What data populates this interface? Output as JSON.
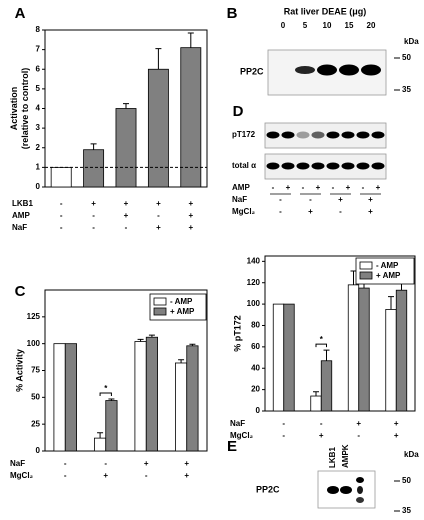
{
  "chart_data": [
    {
      "type": "bar",
      "panel_label": "A",
      "ylabel": [
        "Activation",
        "(relative to control)"
      ],
      "values": [
        1,
        1.9,
        4.0,
        6.0,
        7.1
      ],
      "errors": [
        null,
        0.3,
        0.25,
        1.05,
        0.75
      ],
      "colors": [
        "#ffffff",
        "#808080",
        "#808080",
        "#808080",
        "#808080"
      ],
      "ylim": [
        0,
        8
      ],
      "yticks": [
        0,
        1,
        2,
        3,
        4,
        5,
        6,
        7,
        8
      ],
      "reference_line": 1,
      "conditions": [
        {
          "name": "LKB1",
          "signs": [
            "-",
            "+",
            "+",
            "+",
            "+"
          ]
        },
        {
          "name": "AMP",
          "signs": [
            "-",
            "-",
            "+",
            "-",
            "+"
          ]
        },
        {
          "name": "NaF",
          "signs": [
            "-",
            "-",
            "-",
            "+",
            "+"
          ]
        }
      ]
    },
    {
      "type": "grouped_bar",
      "panel_label": "C",
      "ylabel": [
        "% Activity"
      ],
      "series": [
        {
          "name": "- AMP",
          "color": "#ffffff",
          "values": [
            100,
            12,
            102,
            82
          ],
          "errors": [
            null,
            5,
            2,
            3
          ]
        },
        {
          "name": "+ AMP",
          "color": "#808080",
          "values": [
            100,
            47,
            106,
            98
          ],
          "errors": [
            null,
            1.5,
            2,
            1.5
          ]
        }
      ],
      "ylim": [
        0,
        150
      ],
      "yticks": [
        0,
        25,
        50,
        75,
        100,
        125
      ],
      "annotation": "*",
      "conditions": [
        {
          "name": "NaF",
          "signs": [
            "-",
            "-",
            "+",
            "+"
          ]
        },
        {
          "name": "MgCl₂",
          "signs": [
            "-",
            "+",
            "-",
            "+"
          ]
        }
      ]
    },
    {
      "type": "grouped_bar",
      "ylabel": [
        "% pT172"
      ],
      "series": [
        {
          "name": "- AMP",
          "color": "#ffffff",
          "values": [
            100,
            14,
            118,
            95
          ],
          "errors": [
            null,
            4,
            13,
            12
          ]
        },
        {
          "name": "+ AMP",
          "color": "#808080",
          "values": [
            100,
            47,
            115,
            113
          ],
          "errors": [
            null,
            10,
            10,
            14
          ]
        }
      ],
      "ylim": [
        0,
        145
      ],
      "yticks": [
        0,
        20,
        40,
        60,
        80,
        100,
        120,
        140
      ],
      "annotation": "*",
      "conditions": [
        {
          "name": "NaF",
          "signs": [
            "-",
            "-",
            "+",
            "+"
          ]
        },
        {
          "name": "MgCl₂",
          "signs": [
            "-",
            "+",
            "-",
            "+"
          ]
        }
      ]
    }
  ],
  "blots": {
    "B": {
      "panel_label": "B",
      "title": "Rat liver DEAE (μg)",
      "lanes": [
        "0",
        "5",
        "10",
        "15",
        "20"
      ],
      "protein": "PP2C",
      "unit": "kDa",
      "markers": [
        "50",
        "35"
      ]
    },
    "D": {
      "panel_label": "D",
      "rows": [
        "pT172",
        "total α"
      ],
      "conditions": [
        {
          "name": "AMP",
          "signs": [
            "-",
            "+",
            "-",
            "+",
            "-",
            "+",
            "-",
            "+"
          ]
        },
        {
          "name": "NaF",
          "signs": [
            "-",
            "-",
            "+",
            "+"
          ]
        },
        {
          "name": "MgCl₂",
          "signs": [
            "-",
            "+",
            "-",
            "+"
          ]
        }
      ]
    },
    "E": {
      "panel_label": "E",
      "lanes": [
        "LKB1",
        "AMPK"
      ],
      "protein": "PP2C",
      "unit": "kDa",
      "markers": [
        "50",
        "35"
      ]
    }
  }
}
